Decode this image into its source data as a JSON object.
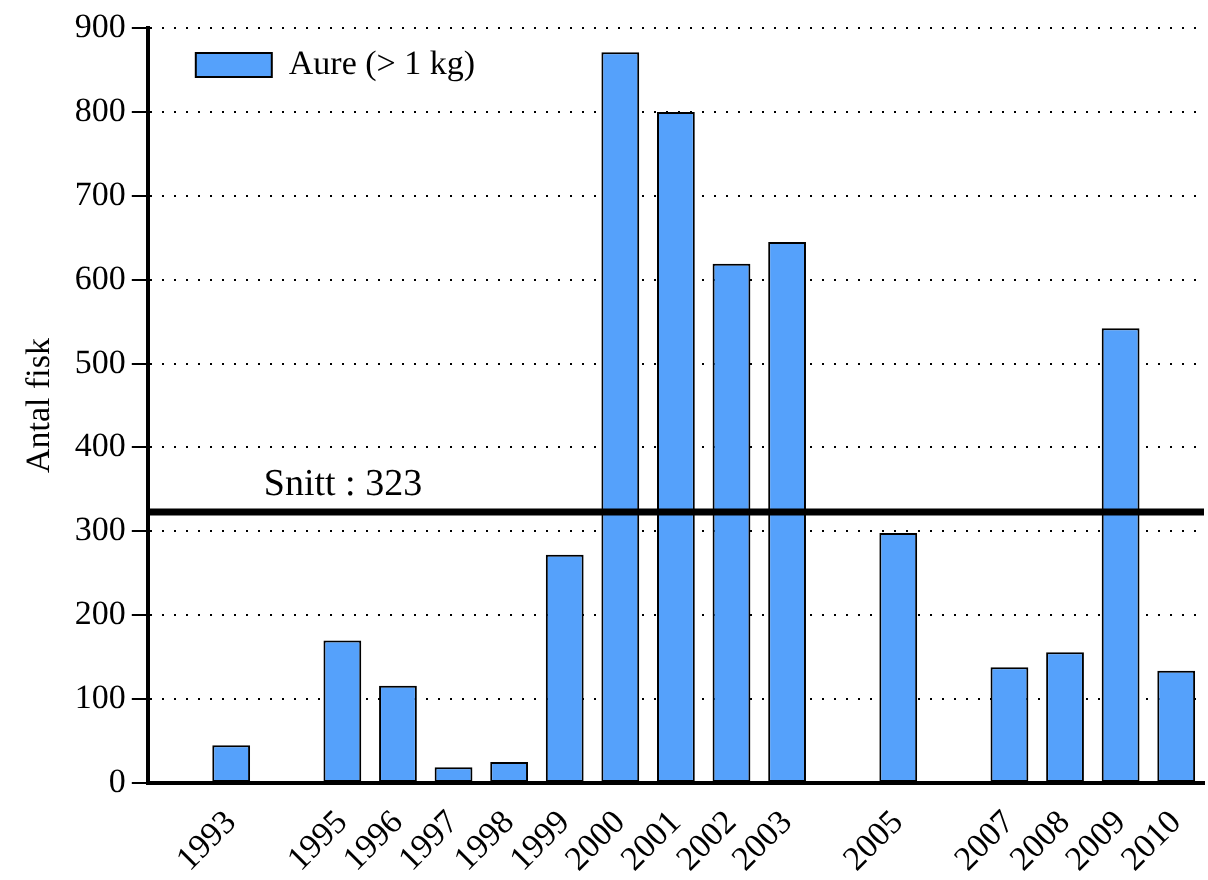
{
  "chart_data": {
    "type": "bar",
    "ylabel": "Antal fisk",
    "categories": [
      null,
      "1993",
      null,
      "1995",
      "1996",
      "1997",
      "1998",
      "1999",
      "2000",
      "2001",
      "2002",
      "2003",
      null,
      "2005",
      null,
      "2007",
      "2008",
      "2009",
      "2010"
    ],
    "series": [
      {
        "name": "Aure (> 1 kg)",
        "color": "#55a1fb",
        "values": [
          null,
          45,
          null,
          170,
          116,
          19,
          25,
          272,
          871,
          800,
          619,
          645,
          null,
          298,
          null,
          138,
          156,
          542,
          134
        ]
      }
    ],
    "ylim": [
      0,
      900
    ],
    "yticks": [
      0,
      100,
      200,
      300,
      400,
      500,
      600,
      700,
      800,
      900
    ],
    "grid": "y",
    "legend": "top left",
    "ref_lines": [
      {
        "axis": "y",
        "value": 323,
        "label": "Snitt : 323",
        "color": "#000000"
      }
    ]
  }
}
